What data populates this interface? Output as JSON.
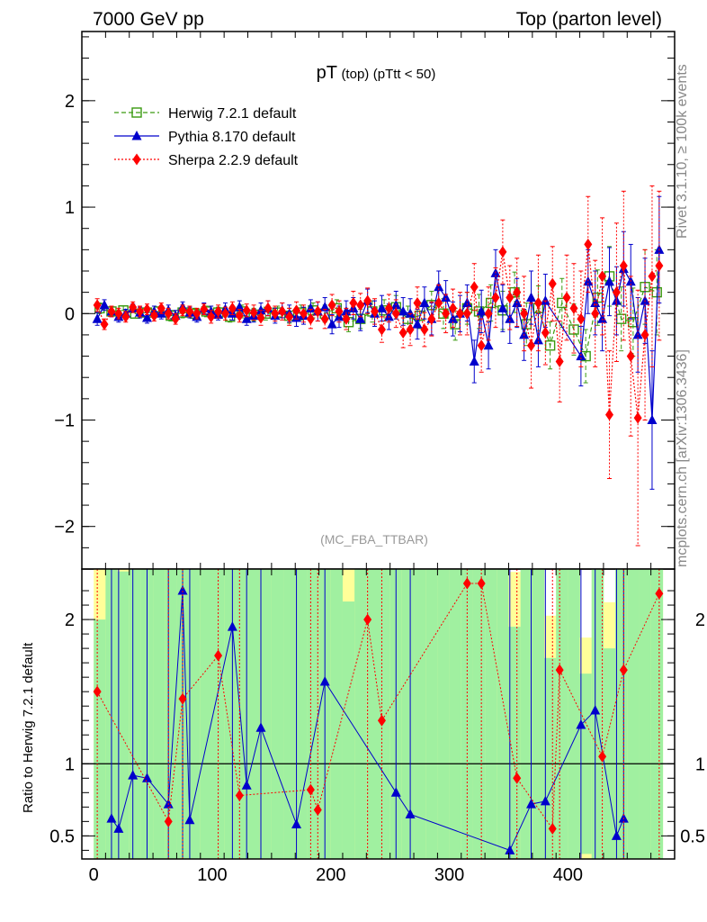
{
  "header": {
    "left": "7000 GeV pp",
    "right": "Top (parton level)"
  },
  "side_labels": {
    "rivet": "Rivet 3.1.10, ≥ 100k events",
    "mcplots": "mcplots.cern.ch [arXiv:1306.3436]"
  },
  "chart_data": [
    {
      "type": "line",
      "panel": "main",
      "title_main": "pT",
      "title_sub": "(top)",
      "title_cut": "(pTtt < 50)",
      "watermark": "(MC_FBA_TTBAR)",
      "xlabel": "",
      "ylabel": "",
      "xlim": [
        -10,
        490
      ],
      "ylim": [
        -2.4,
        2.65
      ],
      "y_ticks": [
        -2,
        -1,
        0,
        1,
        2
      ],
      "y_tick_labels": [
        "−2",
        "−1",
        "0",
        "1",
        "2"
      ],
      "x_ticks": [
        0,
        100,
        200,
        300,
        400
      ],
      "grid": false,
      "legend_position": "top-left",
      "series": [
        {
          "name": "Herwig 7.2.1 default",
          "color": "#3a9a10",
          "marker": "open-square",
          "line": "dashed",
          "x": [
            5,
            15,
            25,
            35,
            45,
            55,
            65,
            75,
            85,
            95,
            105,
            115,
            125,
            135,
            145,
            155,
            165,
            175,
            185,
            195,
            205,
            215,
            225,
            235,
            245,
            255,
            265,
            275,
            285,
            295,
            305,
            315,
            325,
            335,
            345,
            355,
            365,
            375,
            385,
            395,
            405,
            415,
            425,
            435,
            445,
            455,
            465,
            475
          ],
          "y": [
            0.05,
            0.02,
            0.03,
            0.0,
            0.01,
            0.02,
            -0.02,
            0.01,
            0.0,
            0.02,
            0.01,
            -0.03,
            0.02,
            -0.01,
            0.0,
            0.01,
            -0.02,
            0.01,
            0.03,
            0.0,
            0.05,
            -0.08,
            -0.05,
            0.02,
            0.03,
            0.06,
            -0.05,
            -0.02,
            0.08,
            0.0,
            -0.1,
            0.05,
            0.02,
            0.1,
            0.03,
            0.2,
            -0.1,
            0.05,
            -0.3,
            0.1,
            -0.15,
            -0.4,
            0.15,
            0.35,
            -0.05,
            -0.08,
            0.25,
            0.2
          ],
          "err": [
            0.05,
            0.04,
            0.04,
            0.04,
            0.04,
            0.04,
            0.05,
            0.05,
            0.05,
            0.05,
            0.05,
            0.05,
            0.06,
            0.06,
            0.06,
            0.06,
            0.07,
            0.07,
            0.07,
            0.08,
            0.08,
            0.09,
            0.09,
            0.1,
            0.1,
            0.11,
            0.12,
            0.12,
            0.13,
            0.14,
            0.15,
            0.15,
            0.16,
            0.17,
            0.18,
            0.19,
            0.2,
            0.21,
            0.22,
            0.23,
            0.24,
            0.25,
            0.26,
            0.28,
            0.3,
            0.32,
            0.35,
            0.4
          ]
        },
        {
          "name": "Pythia 8.170 default",
          "color": "#0000cc",
          "marker": "filled-triangle",
          "line": "solid",
          "x": [
            3,
            9,
            15,
            21,
            27,
            33,
            39,
            45,
            51,
            57,
            63,
            69,
            75,
            81,
            87,
            93,
            99,
            105,
            111,
            117,
            123,
            129,
            135,
            141,
            147,
            153,
            159,
            165,
            171,
            177,
            183,
            189,
            195,
            201,
            207,
            213,
            219,
            225,
            231,
            237,
            243,
            249,
            255,
            261,
            267,
            273,
            279,
            285,
            291,
            297,
            303,
            309,
            315,
            321,
            327,
            333,
            339,
            345,
            351,
            357,
            363,
            369,
            375,
            381,
            411,
            417,
            423,
            429,
            435,
            441,
            447,
            453,
            459,
            465,
            471,
            477
          ],
          "y": [
            -0.05,
            0.08,
            0.02,
            -0.03,
            0.0,
            0.05,
            0.01,
            -0.04,
            0.02,
            0.0,
            0.03,
            -0.02,
            0.06,
            0.01,
            -0.03,
            0.05,
            0.02,
            -0.01,
            0.04,
            0.0,
            0.06,
            -0.05,
            -0.02,
            0.03,
            0.05,
            -0.02,
            0.03,
            0.0,
            -0.04,
            -0.02,
            0.05,
            0.02,
            0.06,
            -0.1,
            -0.03,
            0.02,
            0.05,
            -0.05,
            0.12,
            0.0,
            0.05,
            -0.03,
            0.08,
            0.02,
            0.0,
            -0.1,
            0.1,
            -0.05,
            0.25,
            0.15,
            -0.05,
            0.0,
            0.1,
            -0.45,
            0.02,
            -0.3,
            0.38,
            0.05,
            -0.05,
            0.1,
            -0.2,
            0.15,
            -0.25,
            0.12,
            -0.4,
            0.3,
            0.1,
            -0.05,
            0.3,
            0.12,
            0.42,
            0.3,
            -0.2,
            0.12,
            -1.0,
            0.6
          ],
          "err": [
            0.06,
            0.05,
            0.05,
            0.05,
            0.04,
            0.04,
            0.05,
            0.05,
            0.05,
            0.05,
            0.05,
            0.05,
            0.05,
            0.05,
            0.05,
            0.05,
            0.05,
            0.05,
            0.06,
            0.06,
            0.06,
            0.06,
            0.06,
            0.07,
            0.07,
            0.07,
            0.07,
            0.08,
            0.08,
            0.08,
            0.08,
            0.09,
            0.09,
            0.09,
            0.1,
            0.1,
            0.1,
            0.11,
            0.11,
            0.12,
            0.12,
            0.12,
            0.13,
            0.13,
            0.14,
            0.14,
            0.15,
            0.15,
            0.15,
            0.16,
            0.16,
            0.17,
            0.17,
            0.2,
            0.2,
            0.22,
            0.22,
            0.22,
            0.23,
            0.23,
            0.24,
            0.25,
            0.25,
            0.25,
            0.28,
            0.3,
            0.3,
            0.3,
            0.32,
            0.32,
            0.35,
            0.35,
            0.35,
            0.4,
            0.65,
            0.5
          ]
        },
        {
          "name": "Sherpa 2.2.9 default",
          "color": "#ff0000",
          "marker": "filled-diamond",
          "line": "dotted",
          "x": [
            3,
            9,
            15,
            21,
            27,
            33,
            39,
            45,
            51,
            57,
            63,
            69,
            75,
            81,
            87,
            93,
            99,
            105,
            111,
            117,
            123,
            129,
            135,
            141,
            147,
            153,
            159,
            165,
            171,
            177,
            183,
            189,
            195,
            201,
            207,
            213,
            219,
            225,
            231,
            237,
            243,
            249,
            255,
            261,
            267,
            273,
            279,
            285,
            291,
            297,
            303,
            309,
            315,
            321,
            327,
            333,
            339,
            345,
            351,
            357,
            363,
            369,
            375,
            381,
            387,
            393,
            399,
            405,
            411,
            417,
            423,
            429,
            435,
            441,
            447,
            453,
            459,
            465,
            471,
            477
          ],
          "y": [
            0.08,
            -0.1,
            0.02,
            0.0,
            -0.03,
            0.06,
            0.02,
            0.04,
            -0.02,
            0.05,
            0.0,
            -0.05,
            0.03,
            0.02,
            0.0,
            0.04,
            -0.03,
            0.02,
            0.0,
            0.05,
            -0.02,
            0.03,
            0.01,
            -0.04,
            0.05,
            0.0,
            0.02,
            -0.03,
            0.03,
            0.0,
            -0.05,
            0.02,
            -0.05,
            0.08,
            0.02,
            -0.05,
            0.1,
            0.08,
            0.12,
            0.02,
            -0.15,
            0.05,
            0.0,
            -0.18,
            -0.15,
            0.1,
            -0.15,
            -0.05,
            0.1,
            0.0,
            0.05,
            0.0,
            0.0,
            0.25,
            -0.3,
            0.0,
            0.15,
            0.58,
            0.15,
            0.2,
            0.0,
            -0.3,
            0.1,
            -0.18,
            0.28,
            -0.45,
            0.15,
            0.05,
            -0.05,
            0.65,
            0.0,
            0.35,
            -0.95,
            0.2,
            0.45,
            -0.4,
            -0.98,
            -0.2,
            0.35,
            0.45
          ],
          "err": [
            0.06,
            0.05,
            0.05,
            0.05,
            0.05,
            0.05,
            0.05,
            0.05,
            0.05,
            0.05,
            0.05,
            0.05,
            0.05,
            0.05,
            0.05,
            0.05,
            0.06,
            0.06,
            0.06,
            0.06,
            0.06,
            0.06,
            0.07,
            0.07,
            0.07,
            0.07,
            0.08,
            0.08,
            0.08,
            0.08,
            0.09,
            0.09,
            0.09,
            0.1,
            0.1,
            0.1,
            0.11,
            0.11,
            0.12,
            0.12,
            0.12,
            0.13,
            0.13,
            0.14,
            0.15,
            0.15,
            0.16,
            0.16,
            0.17,
            0.18,
            0.18,
            0.2,
            0.2,
            0.22,
            0.25,
            0.25,
            0.28,
            0.3,
            0.3,
            0.32,
            0.35,
            0.4,
            0.45,
            0.3,
            0.35,
            0.38,
            0.4,
            0.42,
            0.45,
            0.45,
            0.5,
            0.55,
            0.6,
            0.65,
            0.7,
            0.75,
            1.2,
            0.8,
            0.85,
            0.7
          ]
        }
      ]
    },
    {
      "type": "line",
      "panel": "ratio",
      "ylabel": "Ratio to Herwig 7.2.1 default",
      "xlim": [
        -10,
        490
      ],
      "ylim": [
        0.34,
        2.35
      ],
      "y_ticks": [
        0.5,
        1,
        2
      ],
      "y_tick_labels": [
        "0.5",
        "1",
        "2"
      ],
      "x_ticks": [
        0,
        100,
        200,
        300,
        400
      ],
      "x_tick_labels": [
        "0",
        "100",
        "200",
        "300",
        "400"
      ],
      "reference_line": 1,
      "band_colors": {
        "inner": "#a0f0a0",
        "outer": "#ffff99"
      },
      "series": [
        {
          "name": "Pythia 8.170 default",
          "color": "#0000cc",
          "x": [
            15,
            21,
            33,
            45,
            63,
            75,
            81,
            117,
            129,
            141,
            171,
            195,
            255,
            267,
            351,
            369,
            381,
            411,
            423,
            441,
            447
          ],
          "y": [
            0.62,
            0.55,
            0.92,
            0.9,
            0.72,
            2.2,
            0.61,
            1.95,
            0.85,
            1.25,
            0.58,
            1.57,
            0.8,
            0.65,
            0.4,
            0.72,
            0.74,
            1.27,
            1.37,
            0.5,
            0.62
          ]
        },
        {
          "name": "Sherpa 2.2.9 default",
          "color": "#ff0000",
          "x": [
            3,
            63,
            75,
            105,
            123,
            183,
            189,
            231,
            243,
            315,
            327,
            357,
            387,
            393,
            429,
            447,
            477
          ],
          "y": [
            1.5,
            0.6,
            1.45,
            1.75,
            0.78,
            0.82,
            0.68,
            2.0,
            1.3,
            2.25,
            2.25,
            0.9,
            0.55,
            1.65,
            1.05,
            1.65,
            2.18
          ]
        }
      ]
    }
  ]
}
